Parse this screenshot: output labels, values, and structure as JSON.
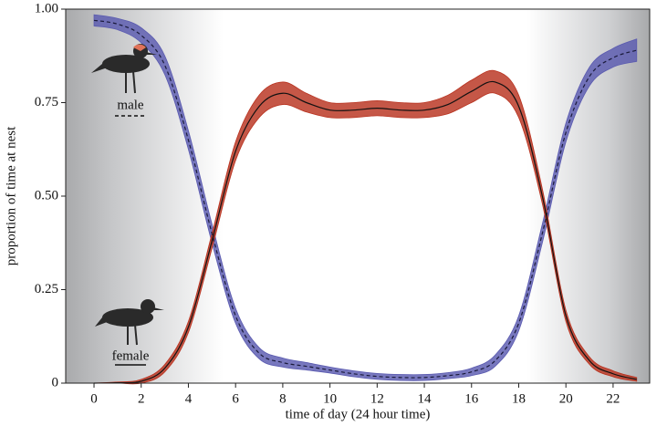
{
  "chart_data": {
    "type": "line",
    "xlabel": "time of day (24 hour time)",
    "ylabel": "proportion of time at nest",
    "x": [
      0,
      1,
      2,
      3,
      4,
      5,
      6,
      7,
      8,
      9,
      10,
      11,
      12,
      13,
      14,
      15,
      16,
      17,
      18,
      19,
      20,
      21,
      22,
      23
    ],
    "xlim": [
      -1.2,
      23.55
    ],
    "xticks": [
      0,
      2,
      4,
      6,
      8,
      10,
      12,
      14,
      16,
      18,
      20,
      22
    ],
    "ylim": [
      0,
      1
    ],
    "yticks": [
      0,
      0.25,
      {
        "value": 0.5,
        "label": "0.50"
      },
      0.75,
      {
        "value": 1,
        "label": "1.00"
      }
    ],
    "series": [
      {
        "name": "male",
        "color": "#5a5ab0",
        "line_color": "#1a1a3a",
        "line_style": "dashed",
        "values": [
          0.97,
          0.96,
          0.93,
          0.85,
          0.65,
          0.4,
          0.18,
          0.08,
          0.055,
          0.045,
          0.035,
          0.025,
          0.018,
          0.015,
          0.015,
          0.02,
          0.03,
          0.06,
          0.16,
          0.4,
          0.67,
          0.82,
          0.87,
          0.89
        ],
        "lower": [
          0.955,
          0.945,
          0.91,
          0.825,
          0.625,
          0.375,
          0.16,
          0.065,
          0.043,
          0.035,
          0.027,
          0.017,
          0.01,
          0.007,
          0.007,
          0.012,
          0.02,
          0.045,
          0.14,
          0.375,
          0.645,
          0.795,
          0.845,
          0.86
        ],
        "upper": [
          0.985,
          0.975,
          0.95,
          0.875,
          0.675,
          0.425,
          0.2,
          0.095,
          0.067,
          0.055,
          0.043,
          0.033,
          0.026,
          0.023,
          0.023,
          0.028,
          0.04,
          0.075,
          0.18,
          0.425,
          0.695,
          0.845,
          0.895,
          0.92
        ]
      },
      {
        "name": "female",
        "color": "#b8321f",
        "line_color": "#111111",
        "line_style": "solid",
        "values": [
          0,
          0.001,
          0.005,
          0.04,
          0.15,
          0.38,
          0.62,
          0.74,
          0.775,
          0.75,
          0.73,
          0.73,
          0.735,
          0.73,
          0.73,
          0.745,
          0.78,
          0.805,
          0.74,
          0.5,
          0.18,
          0.06,
          0.025,
          0.01
        ],
        "lower": [
          0,
          0,
          0,
          0.03,
          0.135,
          0.36,
          0.595,
          0.71,
          0.745,
          0.725,
          0.71,
          0.71,
          0.715,
          0.71,
          0.71,
          0.72,
          0.75,
          0.775,
          0.71,
          0.48,
          0.165,
          0.05,
          0.017,
          0.005
        ],
        "upper": [
          0,
          0.003,
          0.01,
          0.05,
          0.165,
          0.4,
          0.645,
          0.77,
          0.805,
          0.775,
          0.75,
          0.75,
          0.755,
          0.75,
          0.75,
          0.77,
          0.81,
          0.835,
          0.77,
          0.52,
          0.195,
          0.07,
          0.033,
          0.015
        ]
      }
    ]
  }
}
